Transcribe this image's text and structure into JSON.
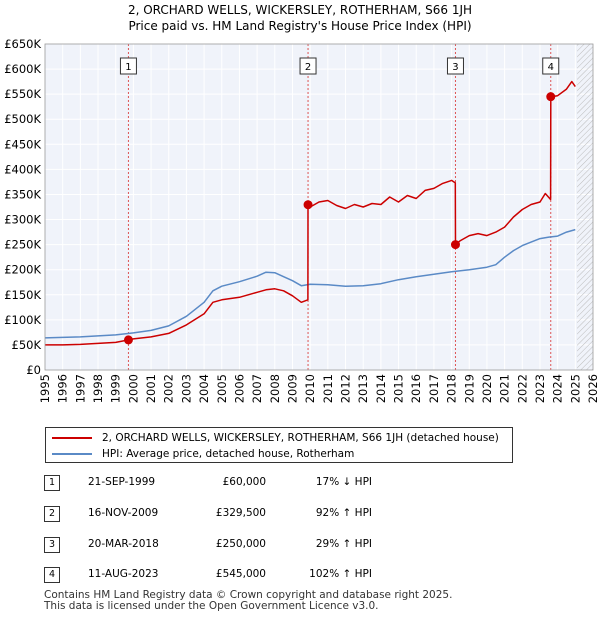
{
  "chart_data": {
    "type": "line",
    "title_line1": "2, ORCHARD WELLS, WICKERSLEY, ROTHERHAM, S66 1JH",
    "title_line2": "Price paid vs. HM Land Registry's House Price Index (HPI)",
    "xlabel": "",
    "ylabel": "",
    "xlim": [
      1995,
      2026
    ],
    "ylim": [
      0,
      650000
    ],
    "y_ticks": [
      0,
      50000,
      100000,
      150000,
      200000,
      250000,
      300000,
      350000,
      400000,
      450000,
      500000,
      550000,
      600000,
      650000
    ],
    "y_tick_labels": [
      "£0",
      "£50K",
      "£100K",
      "£150K",
      "£200K",
      "£250K",
      "£300K",
      "£350K",
      "£400K",
      "£450K",
      "£500K",
      "£550K",
      "£600K",
      "£650K"
    ],
    "x_ticks": [
      1995,
      1996,
      1997,
      1998,
      1999,
      2000,
      2001,
      2002,
      2003,
      2004,
      2005,
      2006,
      2007,
      2008,
      2009,
      2010,
      2011,
      2012,
      2013,
      2014,
      2015,
      2016,
      2017,
      2018,
      2019,
      2020,
      2021,
      2022,
      2023,
      2024,
      2025,
      2026
    ],
    "x_tick_labels": [
      "1995",
      "1996",
      "1997",
      "1998",
      "1999",
      "2000",
      "2001",
      "2002",
      "2003",
      "2004",
      "2005",
      "2006",
      "2007",
      "2008",
      "2009",
      "2010",
      "2011",
      "2012",
      "2013",
      "2014",
      "2015",
      "2016",
      "2017",
      "2018",
      "2019",
      "2020",
      "2021",
      "2022",
      "2023",
      "2024",
      "2025",
      "2026"
    ],
    "grid": true,
    "hatch_from_year": 2025.1,
    "series": [
      {
        "name": "2, ORCHARD WELLS, WICKERSLEY, ROTHERHAM, S66 1JH (detached house)",
        "color": "#cc0000",
        "x": [
          1995.0,
          1996.0,
          1997.0,
          1998.0,
          1999.0,
          1999.72,
          2000.0,
          2001.0,
          2002.0,
          2003.0,
          2004.0,
          2004.5,
          2005.0,
          2006.0,
          2007.0,
          2007.5,
          2008.0,
          2008.5,
          2009.0,
          2009.5,
          2009.87,
          2009.88,
          2010.0,
          2010.5,
          2011.0,
          2011.5,
          2012.0,
          2012.5,
          2013.0,
          2013.5,
          2014.0,
          2014.5,
          2015.0,
          2015.5,
          2016.0,
          2016.5,
          2017.0,
          2017.5,
          2018.0,
          2018.21,
          2018.22,
          2018.5,
          2019.0,
          2019.5,
          2020.0,
          2020.5,
          2021.0,
          2021.5,
          2022.0,
          2022.5,
          2023.0,
          2023.3,
          2023.6,
          2023.61,
          2024.0,
          2024.5,
          2024.8,
          2025.0
        ],
        "values": [
          50000,
          50000,
          51000,
          53000,
          55000,
          60000,
          62000,
          66000,
          73000,
          90000,
          112000,
          135000,
          140000,
          145000,
          155000,
          160000,
          162000,
          158000,
          148000,
          135000,
          140000,
          329500,
          325000,
          335000,
          338000,
          328000,
          322000,
          330000,
          325000,
          332000,
          330000,
          345000,
          335000,
          348000,
          342000,
          358000,
          362000,
          372000,
          378000,
          373000,
          250000,
          258000,
          268000,
          272000,
          268000,
          275000,
          285000,
          305000,
          320000,
          330000,
          335000,
          352000,
          340000,
          545000,
          547000,
          560000,
          575000,
          565000
        ]
      },
      {
        "name": "HPI: Average price, detached house, Rotherham",
        "color": "#5a8ac6",
        "x": [
          1995.0,
          1996.0,
          1997.0,
          1998.0,
          1999.0,
          2000.0,
          2001.0,
          2002.0,
          2003.0,
          2004.0,
          2004.5,
          2005.0,
          2006.0,
          2007.0,
          2007.5,
          2008.0,
          2008.5,
          2009.0,
          2009.5,
          2010.0,
          2011.0,
          2012.0,
          2013.0,
          2014.0,
          2015.0,
          2016.0,
          2017.0,
          2018.0,
          2019.0,
          2020.0,
          2020.5,
          2021.0,
          2021.5,
          2022.0,
          2022.5,
          2023.0,
          2023.5,
          2024.0,
          2024.5,
          2025.0
        ],
        "values": [
          64000,
          65000,
          66000,
          68000,
          70000,
          74000,
          79000,
          88000,
          107000,
          135000,
          158000,
          167000,
          176000,
          187000,
          195000,
          194000,
          186000,
          178000,
          168000,
          171000,
          170000,
          167000,
          168000,
          172000,
          180000,
          186000,
          191000,
          196000,
          200000,
          205000,
          210000,
          225000,
          238000,
          248000,
          255000,
          262000,
          265000,
          267000,
          275000,
          280000
        ]
      }
    ],
    "sales": [
      {
        "n": "1",
        "x": 1999.72,
        "value": 60000
      },
      {
        "n": "2",
        "x": 2009.88,
        "value": 329500
      },
      {
        "n": "3",
        "x": 2018.22,
        "value": 250000
      },
      {
        "n": "4",
        "x": 2023.61,
        "value": 545000
      }
    ]
  },
  "legend": {
    "items": [
      {
        "label": "2, ORCHARD WELLS, WICKERSLEY, ROTHERHAM, S66 1JH (detached house)",
        "color": "#cc0000"
      },
      {
        "label": "HPI: Average price, detached house, Rotherham",
        "color": "#5a8ac6"
      }
    ]
  },
  "transactions": [
    {
      "n": "1",
      "date": "21-SEP-1999",
      "price": "£60,000",
      "hpi": "17% ↓ HPI"
    },
    {
      "n": "2",
      "date": "16-NOV-2009",
      "price": "£329,500",
      "hpi": "92% ↑ HPI"
    },
    {
      "n": "3",
      "date": "20-MAR-2018",
      "price": "£250,000",
      "hpi": "29% ↑ HPI"
    },
    {
      "n": "4",
      "date": "11-AUG-2023",
      "price": "£545,000",
      "hpi": "102% ↑ HPI"
    }
  ],
  "footer": {
    "line1": "Contains HM Land Registry data © Crown copyright and database right 2025.",
    "line2": "This data is licensed under the Open Government Licence v3.0."
  }
}
